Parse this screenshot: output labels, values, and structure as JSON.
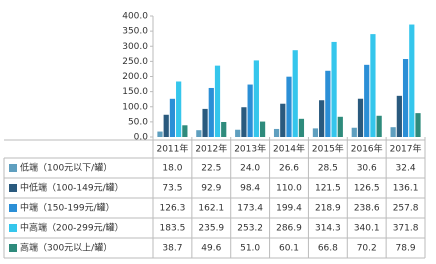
{
  "chart_data": {
    "type": "bar",
    "categories": [
      "2011年",
      "2012年",
      "2013年",
      "2014年",
      "2015年",
      "2016年",
      "2017年"
    ],
    "series": [
      {
        "name": "低端（100元以下/罐）",
        "color": "#5f9fbf",
        "values": [
          18,
          22.5,
          24,
          26.6,
          28.5,
          30.6,
          32.4
        ],
        "value_labels": [
          "18.0",
          "22.5",
          "24.0",
          "26.6",
          "28.5",
          "30.6",
          "32.4"
        ]
      },
      {
        "name": "中低端（100-149元/罐）",
        "color": "#2a5a7e",
        "values": [
          73.5,
          92.9,
          98.4,
          110,
          121.5,
          126.5,
          136.1
        ],
        "value_labels": [
          "73.5",
          "92.9",
          "98.4",
          "110.0",
          "121.5",
          "126.5",
          "136.1"
        ]
      },
      {
        "name": "中端（150-199元/罐）",
        "color": "#2b8fd6",
        "values": [
          126.3,
          162.1,
          173.4,
          199.4,
          218.9,
          238.6,
          257.8
        ],
        "value_labels": [
          "126.3",
          "162.1",
          "173.4",
          "199.4",
          "218.9",
          "238.6",
          "257.8"
        ]
      },
      {
        "name": "中高端（200-299元/罐）",
        "color": "#35c6ec",
        "values": [
          183.5,
          235.9,
          253.2,
          286.9,
          314.3,
          340.1,
          371.8
        ],
        "value_labels": [
          "183.5",
          "235.9",
          "253.2",
          "286.9",
          "314.3",
          "340.1",
          "371.8"
        ]
      },
      {
        "name": "高端（300元以上/罐）",
        "color": "#2e8b7c",
        "values": [
          38.7,
          49.6,
          51,
          60.1,
          66.8,
          70.2,
          78.9
        ],
        "value_labels": [
          "38.7",
          "49.6",
          "51.0",
          "60.1",
          "66.8",
          "70.2",
          "78.9"
        ]
      }
    ],
    "ylim": [
      0,
      400
    ],
    "yticks": [
      {
        "value": 0,
        "label": "0.0"
      },
      {
        "value": 50,
        "label": "50.0"
      },
      {
        "value": 100,
        "label": "100.0"
      },
      {
        "value": 150,
        "label": "150.0"
      },
      {
        "value": 200,
        "label": "200.0"
      },
      {
        "value": 250,
        "label": "250.0"
      },
      {
        "value": 300,
        "label": "300.0"
      },
      {
        "value": 350,
        "label": "350.0"
      },
      {
        "value": 400,
        "label": "400.0"
      }
    ],
    "grid": false
  }
}
